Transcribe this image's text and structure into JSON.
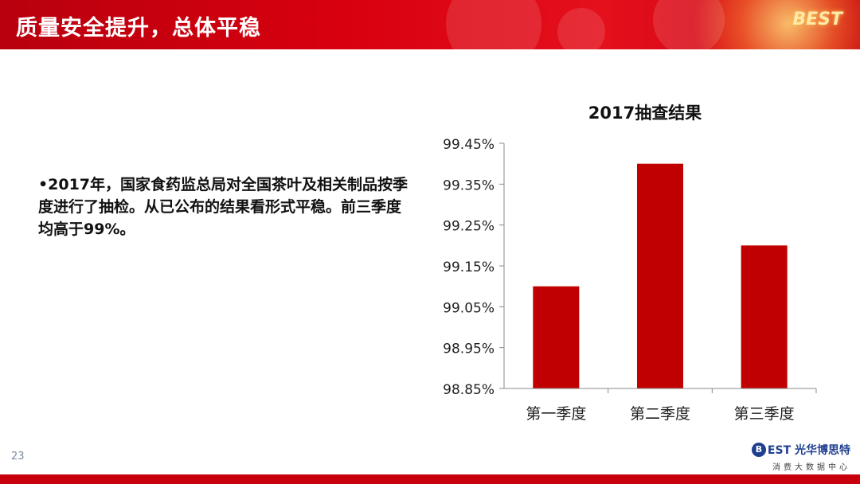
{
  "slide": {
    "title": "质量安全提升，总体平稳",
    "header_logo": "BEST",
    "bullet": "•2017年，国家食药监总局对全国茶叶及相关制品按季度进行了抽检。从已公布的结果看形式平稳。前三季度均高于99%。",
    "page_number": "23",
    "brand_badge": "B",
    "brand_name": "EST 光华博思特",
    "brand_sub": "消费大数据中心",
    "accent_color": "#c00000"
  },
  "chart_data": {
    "type": "bar",
    "title": "2017抽查结果",
    "categories": [
      "第一季度",
      "第二季度",
      "第三季度"
    ],
    "values": [
      99.1,
      99.4,
      99.2
    ],
    "ylim": [
      98.85,
      99.45
    ],
    "yticks": [
      98.85,
      98.95,
      99.05,
      99.15,
      99.25,
      99.35,
      99.45
    ],
    "ytick_labels": [
      "98.85%",
      "98.95%",
      "99.05%",
      "99.15%",
      "99.25%",
      "99.35%",
      "99.45%"
    ],
    "grid": false,
    "bar_color": "#c00000"
  }
}
